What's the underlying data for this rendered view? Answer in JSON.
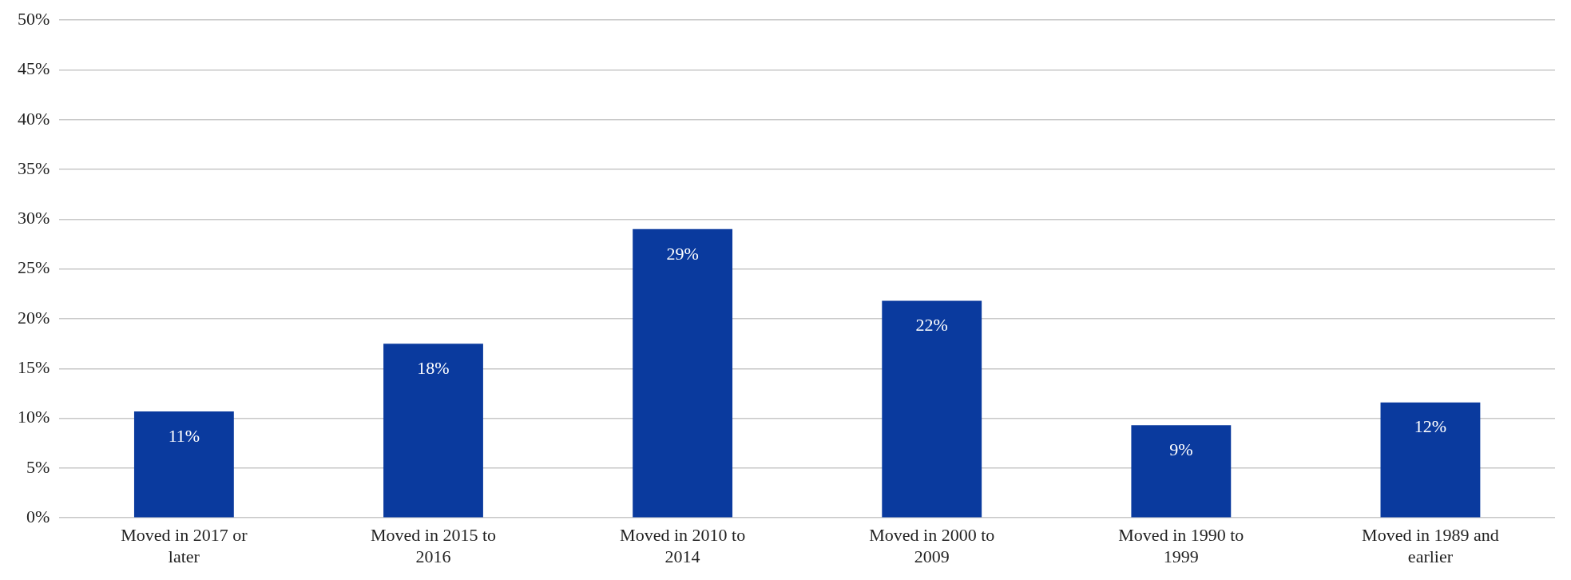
{
  "chart_data": {
    "type": "bar",
    "categories": [
      [
        "Moved in 2017 or",
        "later"
      ],
      [
        "Moved in 2015 to",
        "2016"
      ],
      [
        "Moved in 2010 to",
        "2014"
      ],
      [
        "Moved in 2000 to",
        "2009"
      ],
      [
        "Moved in 1990 to",
        "1999"
      ],
      [
        "Moved in 1989 and",
        "earlier"
      ]
    ],
    "values": [
      10.7,
      17.5,
      29,
      21.8,
      9.3,
      11.6
    ],
    "value_labels": [
      "11%",
      "18%",
      "29%",
      "22%",
      "9%",
      "12%"
    ],
    "color": "#0a3a9e",
    "ylim": [
      0,
      50
    ],
    "yticks": [
      {
        "value": 0,
        "label": "0%"
      },
      {
        "value": 5,
        "label": "5%"
      },
      {
        "value": 10,
        "label": "10%"
      },
      {
        "value": 15,
        "label": "15%"
      },
      {
        "value": 20,
        "label": "20%"
      },
      {
        "value": 25,
        "label": "25%"
      },
      {
        "value": 30,
        "label": "30%"
      },
      {
        "value": 35,
        "label": "35%"
      },
      {
        "value": 40,
        "label": "40%"
      },
      {
        "value": 45,
        "label": "45%"
      },
      {
        "value": 50,
        "label": "50%"
      }
    ],
    "grid": "y",
    "legend": false
  }
}
